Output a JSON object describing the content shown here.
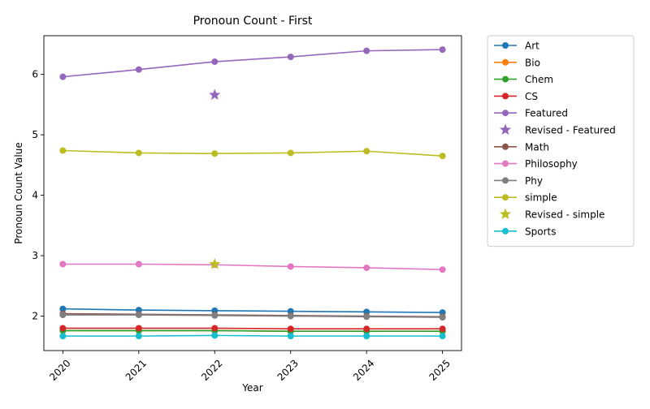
{
  "chart_data": {
    "type": "line",
    "title": "Pronoun Count - First",
    "xlabel": "Year",
    "ylabel": "Pronoun Count Value",
    "x": [
      2020,
      2021,
      2022,
      2023,
      2024,
      2025
    ],
    "xticks": [
      "2020",
      "2021",
      "2022",
      "2023",
      "2024",
      "2025"
    ],
    "yticks": [
      "2",
      "3",
      "4",
      "5",
      "6"
    ],
    "ylim": [
      1.43,
      6.64
    ],
    "grid": false,
    "legend_position": "outside-right",
    "series": [
      {
        "name": "Art",
        "color": "#1f77b4",
        "values": [
          2.12,
          2.1,
          2.09,
          2.08,
          2.07,
          2.06
        ]
      },
      {
        "name": "Bio",
        "color": "#ff7f0e",
        "values": [
          1.76,
          1.76,
          1.76,
          1.75,
          1.75,
          1.75
        ]
      },
      {
        "name": "Chem",
        "color": "#2ca02c",
        "values": [
          1.76,
          1.76,
          1.76,
          1.75,
          1.75,
          1.75
        ]
      },
      {
        "name": "CS",
        "color": "#d62728",
        "values": [
          1.8,
          1.8,
          1.8,
          1.79,
          1.79,
          1.79
        ]
      },
      {
        "name": "Featured",
        "color": "#9467bd",
        "values": [
          5.96,
          6.08,
          6.21,
          6.29,
          6.39,
          6.41
        ]
      },
      {
        "name": "Math",
        "color": "#8c564b",
        "values": [
          2.04,
          2.03,
          2.02,
          2.01,
          2.0,
          1.99
        ]
      },
      {
        "name": "Philosophy",
        "color": "#e377c2",
        "values": [
          2.86,
          2.86,
          2.85,
          2.82,
          2.8,
          2.77
        ]
      },
      {
        "name": "Phy",
        "color": "#7f7f7f",
        "values": [
          2.02,
          2.02,
          2.01,
          2.0,
          1.99,
          1.98
        ]
      },
      {
        "name": "simple",
        "color": "#bcbd22",
        "values": [
          4.74,
          4.7,
          4.69,
          4.7,
          4.73,
          4.65
        ]
      },
      {
        "name": "Sports",
        "color": "#17becf",
        "values": [
          1.67,
          1.67,
          1.68,
          1.67,
          1.67,
          1.67
        ]
      }
    ],
    "revised_points": [
      {
        "name": "Revised - Featured",
        "color": "#9467bd",
        "x": 2022,
        "y": 5.66
      },
      {
        "name": "Revised - simple",
        "color": "#bcbd22",
        "x": 2022,
        "y": 2.86
      }
    ],
    "legend": [
      {
        "label": "Art",
        "kind": "line",
        "color": "#1f77b4"
      },
      {
        "label": "Bio",
        "kind": "line",
        "color": "#ff7f0e"
      },
      {
        "label": "Chem",
        "kind": "line",
        "color": "#2ca02c"
      },
      {
        "label": "CS",
        "kind": "line",
        "color": "#d62728"
      },
      {
        "label": "Featured",
        "kind": "line",
        "color": "#9467bd"
      },
      {
        "label": "Revised - Featured",
        "kind": "star",
        "color": "#9467bd"
      },
      {
        "label": "Math",
        "kind": "line",
        "color": "#8c564b"
      },
      {
        "label": "Philosophy",
        "kind": "line",
        "color": "#e377c2"
      },
      {
        "label": "Phy",
        "kind": "line",
        "color": "#7f7f7f"
      },
      {
        "label": "simple",
        "kind": "line",
        "color": "#bcbd22"
      },
      {
        "label": "Revised - simple",
        "kind": "star",
        "color": "#bcbd22"
      },
      {
        "label": "Sports",
        "kind": "line",
        "color": "#17becf"
      }
    ]
  }
}
